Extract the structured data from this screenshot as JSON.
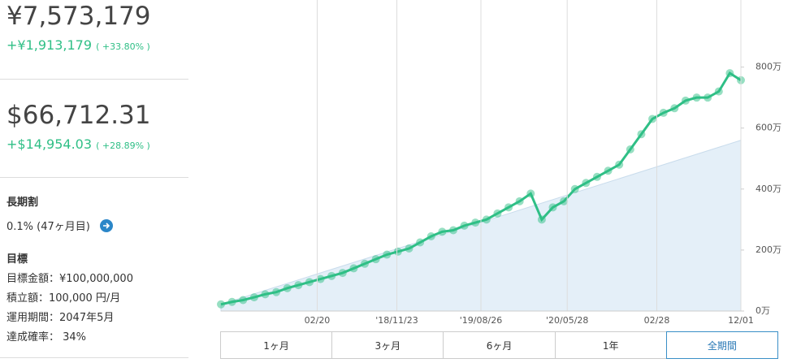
{
  "summary": {
    "jpy_value": "¥7,573,179",
    "jpy_gain": "+¥1,913,179",
    "jpy_pct": "( +33.80% )",
    "usd_value": "$66,712.31",
    "usd_gain": "+$14,954.03",
    "usd_pct": "( +28.89% )"
  },
  "discount": {
    "title": "長期割",
    "text": "0.1% (47ヶ月目)"
  },
  "goal": {
    "title": "目標",
    "lines": [
      "目標金額：¥100,000,000",
      "積立額：100,000 円/月",
      "運用期間：2047年5月",
      "達成確率： 34%"
    ]
  },
  "ranges": {
    "buttons": [
      "1ヶ月",
      "3ヶ月",
      "6ヶ月",
      "1年",
      "全期間"
    ],
    "selected": 4
  },
  "chart_data": {
    "type": "line",
    "xlim": [
      0,
      47
    ],
    "xticks": [
      {
        "value": 8.7,
        "label": "02/20"
      },
      {
        "value": 15.9,
        "label": "'18/11/23"
      },
      {
        "value": 23.5,
        "label": "'19/08/26"
      },
      {
        "value": 31.3,
        "label": "'20/05/28"
      },
      {
        "value": 39.4,
        "label": "02/28"
      },
      {
        "value": 47,
        "label": "12/01"
      }
    ],
    "ylim": [
      0,
      1020
    ],
    "yticks": [
      {
        "value": 0,
        "label": "0万"
      },
      {
        "value": 200,
        "label": "200万"
      },
      {
        "value": 400,
        "label": "400万"
      },
      {
        "value": 600,
        "label": "600万"
      },
      {
        "value": 800,
        "label": "800万"
      }
    ],
    "grid": true,
    "series": [
      {
        "kind": "area",
        "color": "#e4eff8",
        "x": [
          0,
          47
        ],
        "values": [
          22,
          560
        ]
      },
      {
        "kind": "line",
        "color": "#2fbf86",
        "x": [
          0,
          1,
          2,
          3,
          4,
          5,
          6,
          7,
          8,
          9,
          10,
          11,
          12,
          13,
          14,
          15,
          16,
          17,
          18,
          19,
          20,
          21,
          22,
          23,
          24,
          25,
          26,
          27,
          28,
          29,
          30,
          31,
          32,
          33,
          34,
          35,
          36,
          37,
          38,
          39,
          40,
          41,
          42,
          43,
          44,
          45,
          46,
          47
        ],
        "values": [
          22,
          30,
          36,
          45,
          55,
          62,
          75,
          85,
          95,
          105,
          115,
          125,
          140,
          155,
          170,
          185,
          195,
          205,
          225,
          245,
          260,
          265,
          280,
          290,
          300,
          320,
          340,
          360,
          385,
          300,
          340,
          360,
          400,
          420,
          440,
          460,
          480,
          530,
          580,
          630,
          650,
          665,
          690,
          700,
          700,
          720,
          780,
          757
        ]
      }
    ]
  }
}
